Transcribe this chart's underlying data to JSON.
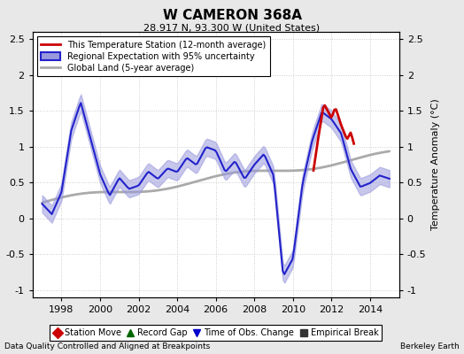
{
  "title": "W CAMERON 368A",
  "subtitle": "28.917 N, 93.300 W (United States)",
  "ylabel": "Temperature Anomaly (°C)",
  "xlabel_left": "Data Quality Controlled and Aligned at Breakpoints",
  "xlabel_right": "Berkeley Earth",
  "xlim": [
    1996.5,
    2015.5
  ],
  "ylim": [
    -1.1,
    2.6
  ],
  "yticks": [
    -1,
    -0.5,
    0,
    0.5,
    1,
    1.5,
    2,
    2.5
  ],
  "xticks": [
    1998,
    2000,
    2002,
    2004,
    2006,
    2008,
    2010,
    2012,
    2014
  ],
  "background_color": "#e8e8e8",
  "plot_bg_color": "#ffffff",
  "regional_color": "#2222cc",
  "regional_fill_color": "#9999dd",
  "station_color": "#cc0000",
  "global_color": "#aaaaaa",
  "legend_items": [
    {
      "label": "This Temperature Station (12-month average)",
      "color": "#cc0000",
      "lw": 2
    },
    {
      "label": "Regional Expectation with 95% uncertainty",
      "color": "#2222cc",
      "fill": "#9999dd"
    },
    {
      "label": "Global Land (5-year average)",
      "color": "#aaaaaa",
      "lw": 2
    }
  ],
  "bottom_legend": [
    {
      "label": "Station Move",
      "marker": "D",
      "color": "#cc0000"
    },
    {
      "label": "Record Gap",
      "marker": "^",
      "color": "#006600"
    },
    {
      "label": "Time of Obs. Change",
      "marker": "v",
      "color": "#0000cc"
    },
    {
      "label": "Empirical Break",
      "marker": "s",
      "color": "#333333"
    }
  ]
}
